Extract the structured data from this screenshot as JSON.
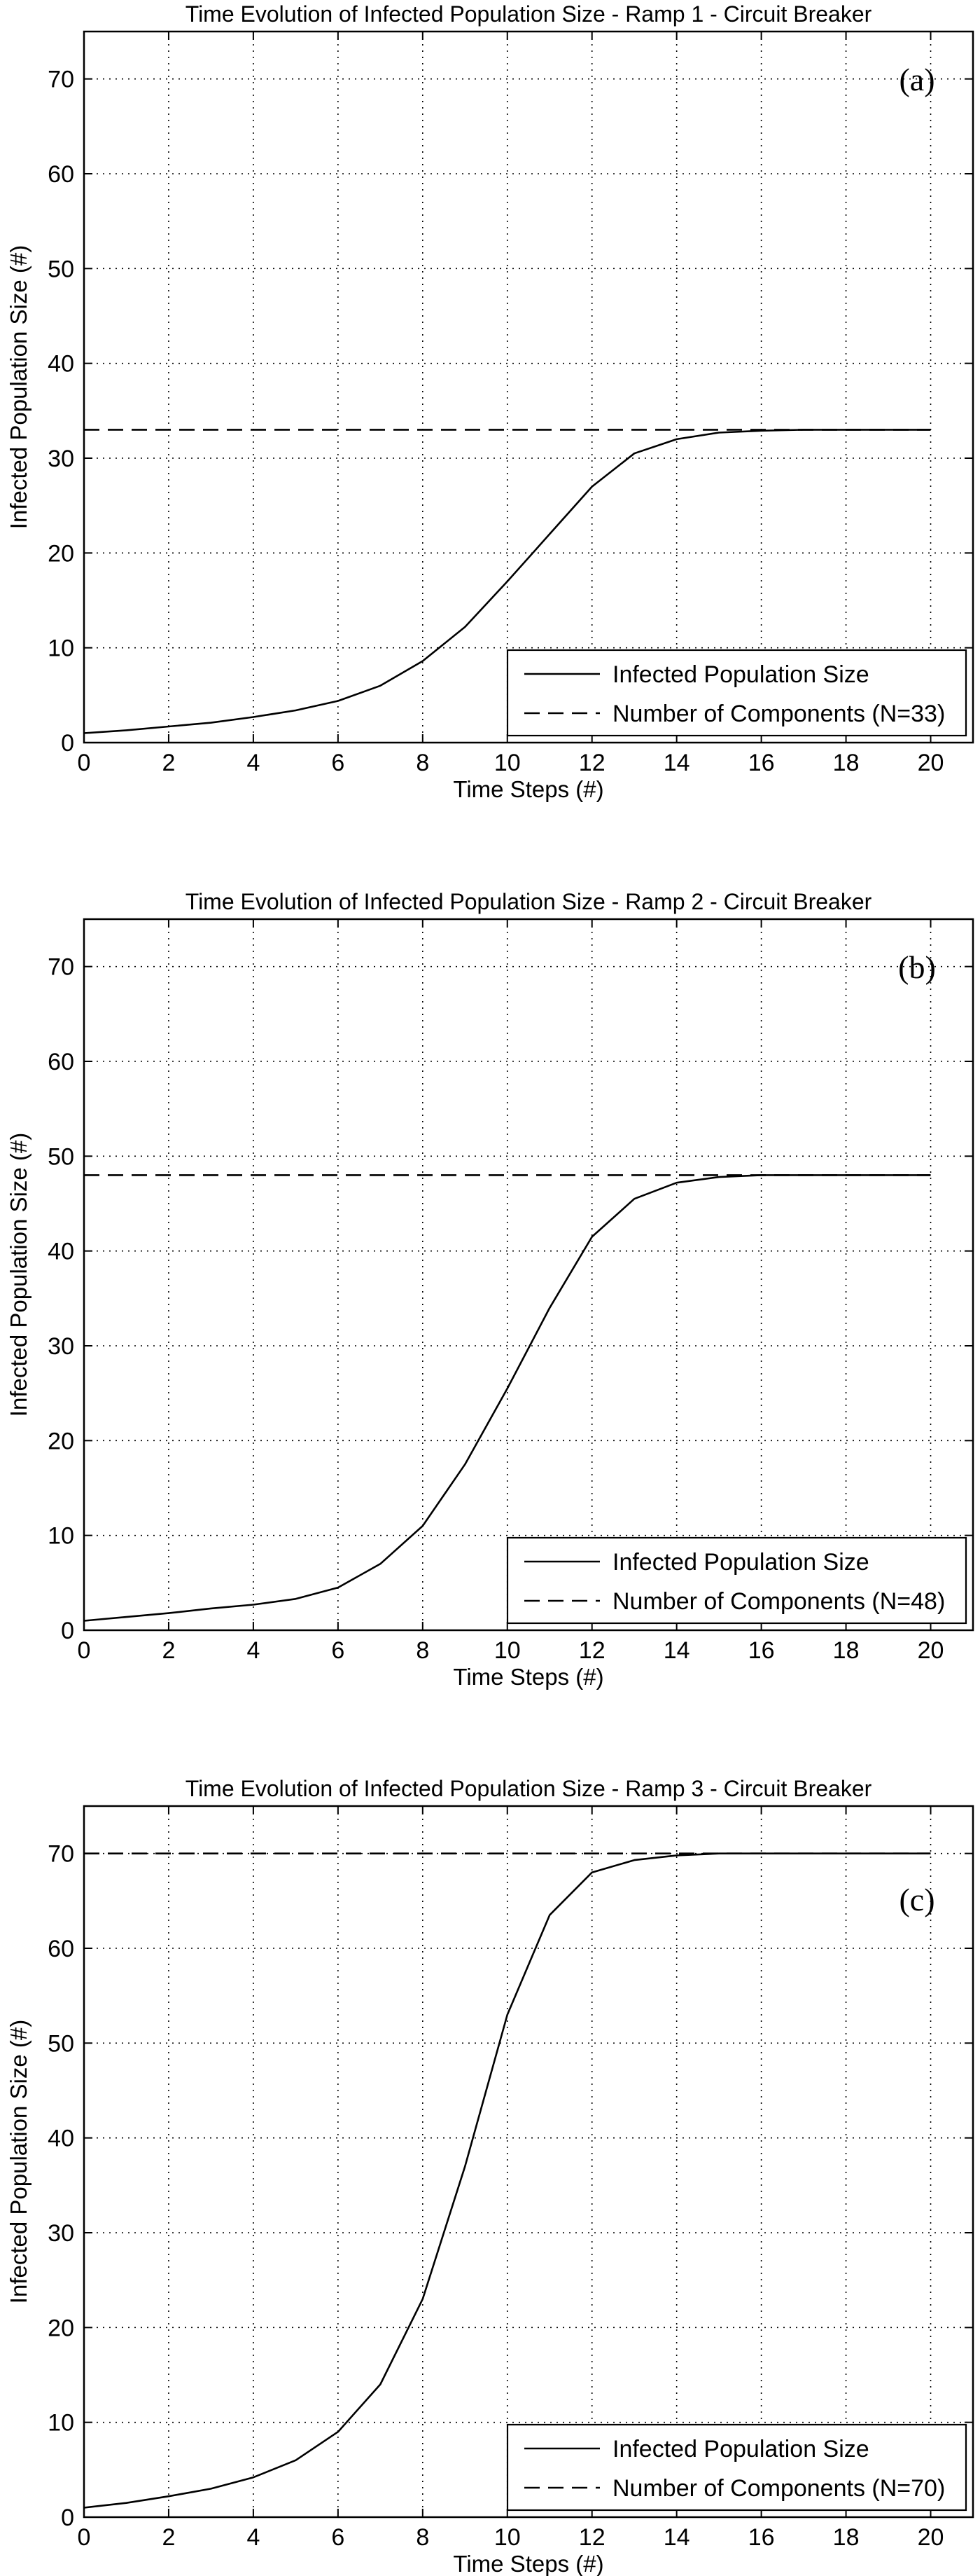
{
  "figure": {
    "panels": [
      {
        "label": "(a)"
      },
      {
        "label": "(b)"
      },
      {
        "label": "(c)"
      }
    ]
  },
  "chart_data": [
    {
      "type": "line",
      "title": "Time Evolution of Infected Population Size - Ramp 1 - Circuit Breaker",
      "xlabel": "Time Steps (#)",
      "ylabel": "Infected Population Size (#)",
      "xlim": [
        0,
        21
      ],
      "ylim": [
        0,
        75
      ],
      "xticks": [
        0,
        2,
        4,
        6,
        8,
        10,
        12,
        14,
        16,
        18,
        20
      ],
      "yticks": [
        0,
        10,
        20,
        30,
        40,
        50,
        60,
        70
      ],
      "grid": true,
      "legend": "bottom-right",
      "panel_label": "(a)",
      "series": [
        {
          "name": "Infected Population Size",
          "style": "solid",
          "x": [
            0,
            1,
            2,
            3,
            4,
            5,
            6,
            7,
            8,
            9,
            10,
            11,
            12,
            13,
            14,
            15,
            16,
            17,
            18,
            19,
            20
          ],
          "y": [
            1,
            1.3,
            1.7,
            2.1,
            2.7,
            3.4,
            4.4,
            6,
            8.6,
            12.2,
            17,
            22,
            27,
            30.5,
            32,
            32.7,
            32.9,
            33,
            33,
            33,
            33
          ]
        },
        {
          "name": "Number of Components (N=33)",
          "style": "dashed",
          "x": [
            0,
            20
          ],
          "y": [
            33,
            33
          ]
        }
      ]
    },
    {
      "type": "line",
      "title": "Time Evolution of Infected Population Size - Ramp 2 - Circuit Breaker",
      "xlabel": "Time Steps (#)",
      "ylabel": "Infected Population Size (#)",
      "xlim": [
        0,
        21
      ],
      "ylim": [
        0,
        75
      ],
      "xticks": [
        0,
        2,
        4,
        6,
        8,
        10,
        12,
        14,
        16,
        18,
        20
      ],
      "yticks": [
        0,
        10,
        20,
        30,
        40,
        50,
        60,
        70
      ],
      "grid": true,
      "legend": "bottom-right",
      "panel_label": "(b)",
      "series": [
        {
          "name": "Infected Population Size",
          "style": "solid",
          "x": [
            0,
            1,
            2,
            3,
            4,
            5,
            6,
            7,
            8,
            9,
            10,
            11,
            12,
            13,
            14,
            15,
            16,
            17,
            18,
            19,
            20
          ],
          "y": [
            1,
            1.4,
            1.8,
            2.3,
            2.7,
            3.3,
            4.5,
            7,
            11,
            17.5,
            25.5,
            34,
            41.5,
            45.5,
            47.2,
            47.8,
            48,
            48,
            48,
            48,
            48
          ]
        },
        {
          "name": "Number of Components (N=48)",
          "style": "dashed",
          "x": [
            0,
            20
          ],
          "y": [
            48,
            48
          ]
        }
      ]
    },
    {
      "type": "line",
      "title": "Time Evolution of Infected Population Size - Ramp 3 - Circuit Breaker",
      "xlabel": "Time Steps (#)",
      "ylabel": "Infected Population Size (#)",
      "xlim": [
        0,
        21
      ],
      "ylim": [
        0,
        75
      ],
      "xticks": [
        0,
        2,
        4,
        6,
        8,
        10,
        12,
        14,
        16,
        18,
        20
      ],
      "yticks": [
        0,
        10,
        20,
        30,
        40,
        50,
        60,
        70
      ],
      "grid": true,
      "legend": "bottom-right",
      "panel_label": "(c)",
      "series": [
        {
          "name": "Infected Population Size",
          "style": "solid",
          "x": [
            0,
            1,
            2,
            3,
            4,
            5,
            6,
            7,
            8,
            9,
            10,
            11,
            12,
            13,
            14,
            15,
            16,
            17,
            18,
            19,
            20
          ],
          "y": [
            1,
            1.5,
            2.2,
            3,
            4.2,
            6,
            9,
            14,
            23,
            37,
            53,
            63.5,
            68,
            69.3,
            69.8,
            70,
            70,
            70,
            70,
            70,
            70
          ]
        },
        {
          "name": "Number of Components (N=70)",
          "style": "dashed",
          "x": [
            0,
            20
          ],
          "y": [
            70,
            70
          ]
        }
      ]
    }
  ]
}
